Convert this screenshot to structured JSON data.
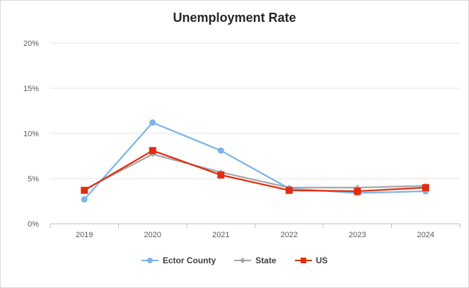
{
  "chart_data": {
    "type": "line",
    "title": "Unemployment Rate",
    "xlabel": "",
    "ylabel": "",
    "categories": [
      "2019",
      "2020",
      "2021",
      "2022",
      "2023",
      "2024"
    ],
    "ylim": [
      0,
      20
    ],
    "yticks": [
      "0%",
      "5%",
      "10%",
      "15%",
      "20%"
    ],
    "ytick_values": [
      0,
      5,
      10,
      15,
      20
    ],
    "grid": true,
    "legend_position": "bottom",
    "series": [
      {
        "name": "Ector County",
        "values": [
          2.7,
          11.2,
          8.1,
          3.9,
          3.4,
          3.6
        ],
        "color": "#7cb4e8",
        "marker": "circle"
      },
      {
        "name": "State",
        "values": [
          3.8,
          7.7,
          5.7,
          4.0,
          4.0,
          4.2
        ],
        "color": "#a5a5a5",
        "marker": "diamond"
      },
      {
        "name": "US",
        "values": [
          3.7,
          8.1,
          5.4,
          3.7,
          3.6,
          4.0
        ],
        "color": "#e32c0f",
        "marker": "square"
      }
    ]
  }
}
